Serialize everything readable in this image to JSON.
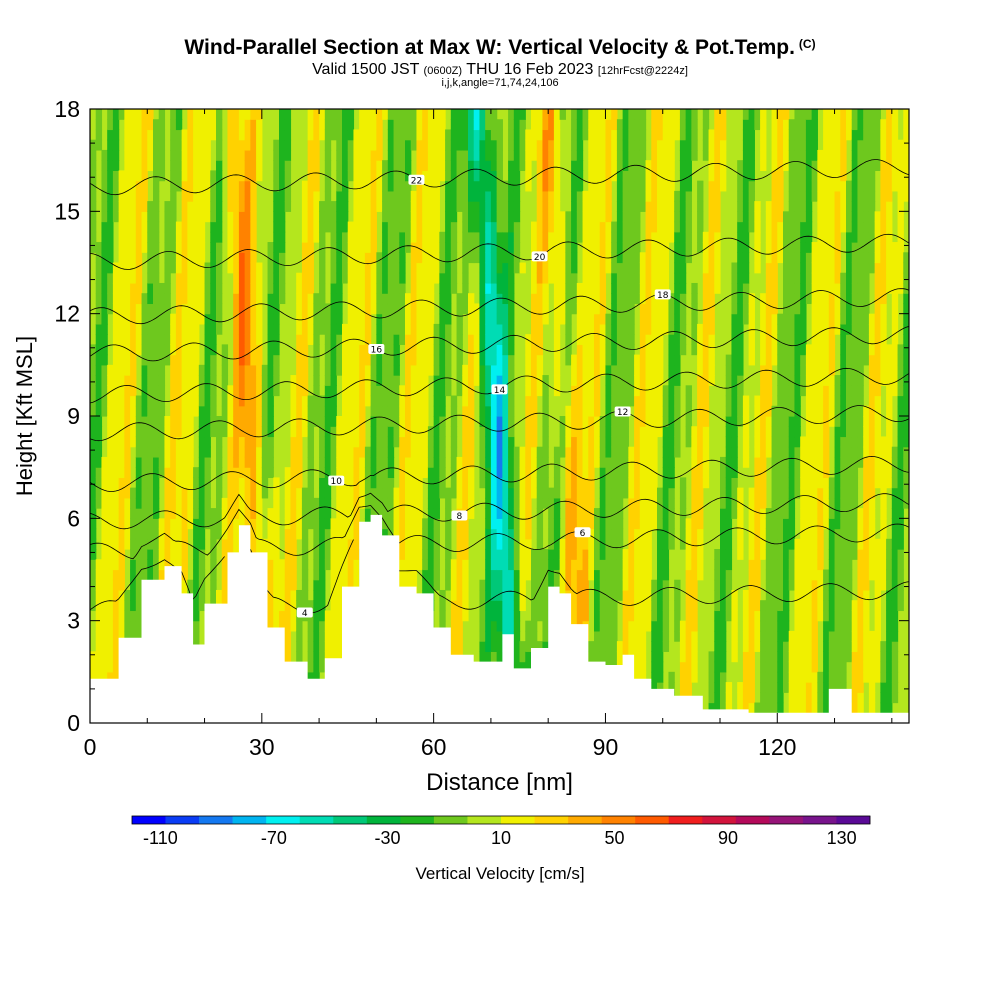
{
  "header": {
    "title": "Wind-Parallel Section at Max W: Vertical Velocity & Pot.Temp.",
    "copyright": "(C)",
    "subtitle_pre": "Valid 1500 JST",
    "subtitle_zulu": "(0600Z)",
    "subtitle_date": "THU 16 Feb 2023",
    "subtitle_fcst": "[12hrFcst@2224z]",
    "indices": "i,j,k,angle=71,74,24,106"
  },
  "chart_data": {
    "type": "heatmap",
    "title": "Wind-Parallel Section at Max W: Vertical Velocity & Pot.Temp.",
    "xlabel": "Distance [nm]",
    "ylabel": "Height [Kft MSL]",
    "xlim": [
      0,
      143
    ],
    "ylim": [
      0,
      18
    ],
    "x_ticks": [
      "0",
      "30",
      "60",
      "90",
      "120"
    ],
    "y_ticks": [
      "0",
      "3",
      "6",
      "9",
      "12",
      "15",
      "18"
    ],
    "colorbar": {
      "label": "Vertical Velocity [cm/s]",
      "tick_labels": [
        "-110",
        "-70",
        "-30",
        "10",
        "50",
        "90",
        "130"
      ],
      "range": [
        -120,
        140
      ],
      "colors": [
        "#0000ff",
        "#0a3cf5",
        "#1478f0",
        "#00b4f0",
        "#00f0f0",
        "#00dcb4",
        "#00c878",
        "#00b43c",
        "#1eb41e",
        "#6ec81e",
        "#b4e61e",
        "#f0f000",
        "#ffd200",
        "#ffaa00",
        "#ff8200",
        "#ff5a00",
        "#f01e1e",
        "#d2143c",
        "#b40a5a",
        "#961478",
        "#78148c",
        "#5a0a96"
      ]
    },
    "updrafts": [
      {
        "x": 28,
        "w": 35
      },
      {
        "x": 83,
        "w": 20
      },
      {
        "x": 15,
        "w": 6
      },
      {
        "x": 71,
        "w": -65
      }
    ],
    "theta_contours": [
      {
        "level": 4,
        "height": 3.6
      },
      {
        "level": 6,
        "height": 5.3
      },
      {
        "level": 8,
        "height": 6.2
      },
      {
        "level": 10,
        "height": 7.3
      },
      {
        "level": 12,
        "height": 8.8
      },
      {
        "level": 14,
        "height": 9.9
      },
      {
        "level": 16,
        "height": 11.1
      },
      {
        "level": 18,
        "height": 12.2
      },
      {
        "level": 20,
        "height": 13.8
      },
      {
        "level": 22,
        "height": 16.0
      }
    ],
    "terrain": [
      {
        "x": 0,
        "h": 1.3
      },
      {
        "x": 5,
        "h": 2.5
      },
      {
        "x": 9,
        "h": 4.2
      },
      {
        "x": 13,
        "h": 4.6
      },
      {
        "x": 16,
        "h": 3.8
      },
      {
        "x": 18,
        "h": 2.3
      },
      {
        "x": 20,
        "h": 3.5
      },
      {
        "x": 24,
        "h": 5.0
      },
      {
        "x": 26,
        "h": 5.8
      },
      {
        "x": 28,
        "h": 5.0
      },
      {
        "x": 31,
        "h": 2.8
      },
      {
        "x": 34,
        "h": 1.8
      },
      {
        "x": 38,
        "h": 1.3
      },
      {
        "x": 41,
        "h": 1.9
      },
      {
        "x": 44,
        "h": 4.0
      },
      {
        "x": 47,
        "h": 5.9
      },
      {
        "x": 49,
        "h": 6.1
      },
      {
        "x": 51,
        "h": 5.5
      },
      {
        "x": 54,
        "h": 4.0
      },
      {
        "x": 57,
        "h": 3.8
      },
      {
        "x": 60,
        "h": 2.8
      },
      {
        "x": 63,
        "h": 2.0
      },
      {
        "x": 67,
        "h": 1.8
      },
      {
        "x": 70,
        "h": 1.8
      },
      {
        "x": 72,
        "h": 2.6
      },
      {
        "x": 74,
        "h": 1.6
      },
      {
        "x": 77,
        "h": 2.2
      },
      {
        "x": 80,
        "h": 4.0
      },
      {
        "x": 82,
        "h": 3.8
      },
      {
        "x": 84,
        "h": 2.9
      },
      {
        "x": 87,
        "h": 1.8
      },
      {
        "x": 90,
        "h": 1.7
      },
      {
        "x": 93,
        "h": 2.0
      },
      {
        "x": 95,
        "h": 1.3
      },
      {
        "x": 98,
        "h": 1.0
      },
      {
        "x": 102,
        "h": 0.8
      },
      {
        "x": 107,
        "h": 0.4
      },
      {
        "x": 115,
        "h": 0.3
      },
      {
        "x": 128,
        "h": 0.3
      },
      {
        "x": 129,
        "h": 1.0
      },
      {
        "x": 132,
        "h": 1.0
      },
      {
        "x": 133,
        "h": 0.3
      },
      {
        "x": 143,
        "h": 0.3
      }
    ]
  }
}
